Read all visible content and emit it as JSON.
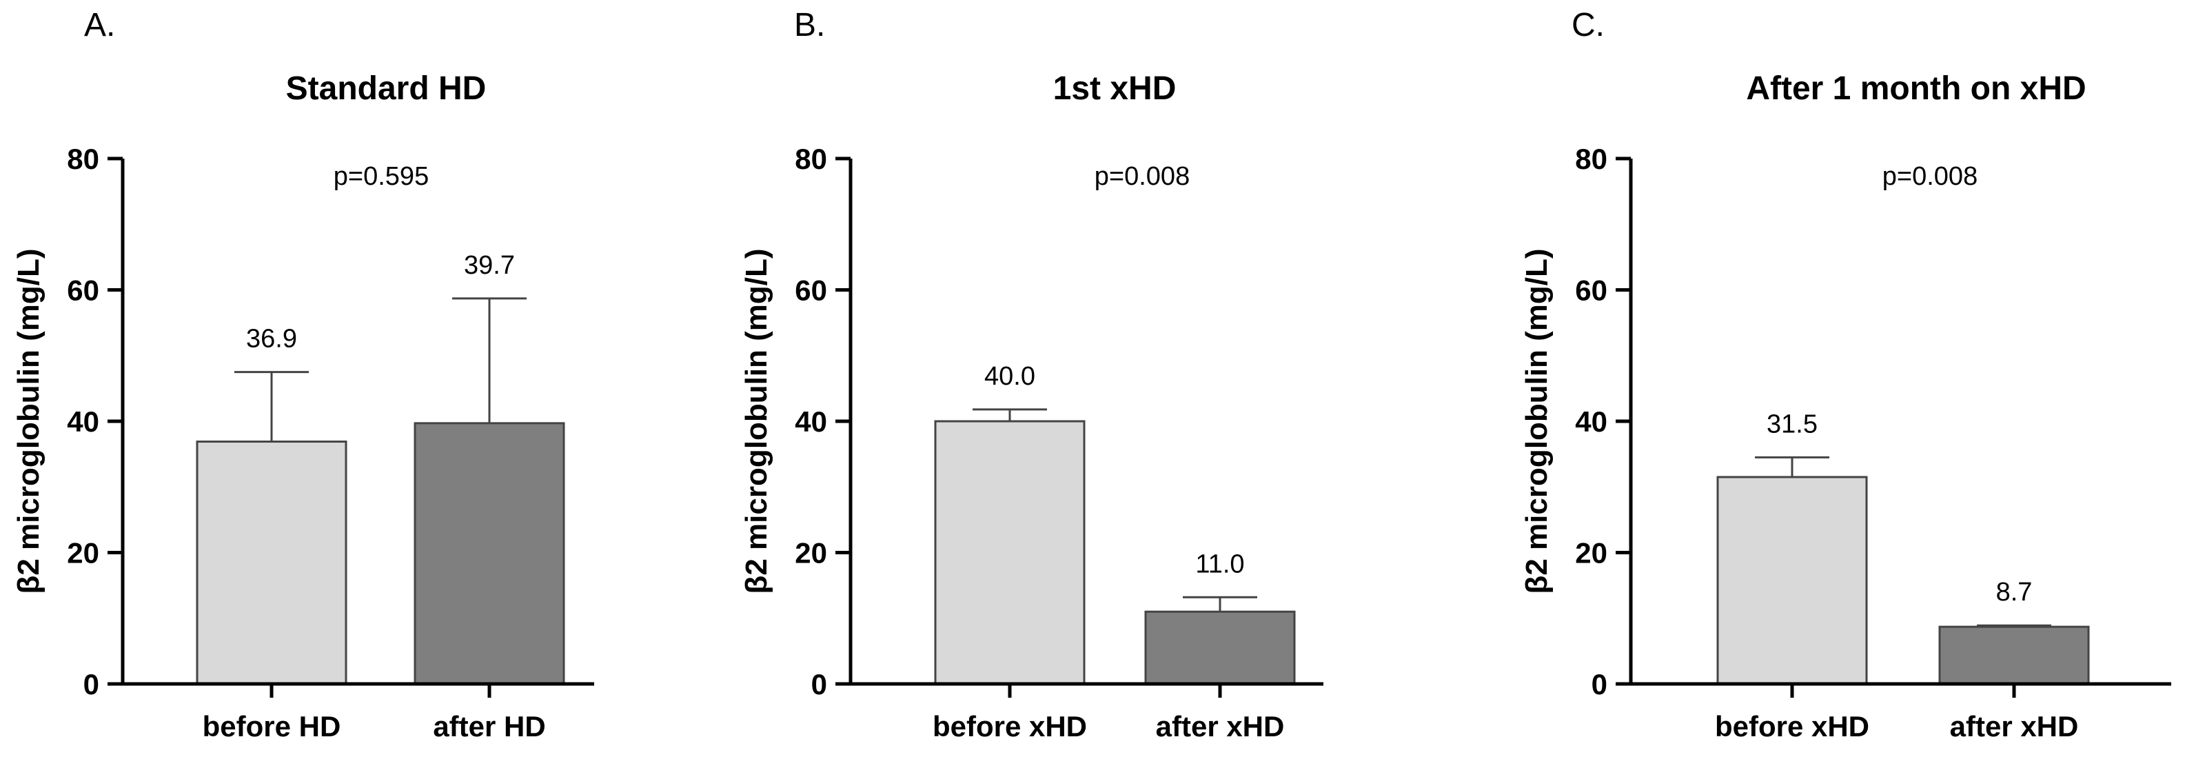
{
  "chart_data": [
    {
      "type": "bar",
      "panel_label": "A.",
      "title": "Standard HD",
      "ylabel": "β2 microglobulin (mg/L)",
      "ylim": [
        0,
        80
      ],
      "yticks": [
        0,
        20,
        40,
        60,
        80
      ],
      "categories": [
        "before HD",
        "after HD"
      ],
      "values": [
        36.9,
        39.7
      ],
      "value_labels": [
        "36.9",
        "39.7"
      ],
      "error_upper": [
        47.5,
        58.7
      ],
      "annotation": "p=0.595",
      "bar_colors": [
        "#d9d9d9",
        "#7f7f7f"
      ]
    },
    {
      "type": "bar",
      "panel_label": "B.",
      "title": "1st xHD",
      "ylabel": "β2 microglobulin (mg/L)",
      "ylim": [
        0,
        80
      ],
      "yticks": [
        0,
        20,
        40,
        60,
        80
      ],
      "categories": [
        "before xHD",
        "after xHD"
      ],
      "values": [
        40.0,
        11.0
      ],
      "value_labels": [
        "40.0",
        "11.0"
      ],
      "error_upper": [
        41.8,
        13.2
      ],
      "annotation": "p=0.008",
      "bar_colors": [
        "#d9d9d9",
        "#7f7f7f"
      ]
    },
    {
      "type": "bar",
      "panel_label": "C.",
      "title": "After 1 month on xHD",
      "ylabel": "β2 microglobulin (mg/L)",
      "ylim": [
        0,
        80
      ],
      "yticks": [
        0,
        20,
        40,
        60,
        80
      ],
      "categories": [
        "before xHD",
        "after xHD"
      ],
      "values": [
        31.5,
        8.7
      ],
      "value_labels": [
        "31.5",
        "8.7"
      ],
      "error_upper": [
        34.5,
        8.9
      ],
      "annotation": "p=0.008",
      "bar_colors": [
        "#d9d9d9",
        "#7f7f7f"
      ]
    }
  ]
}
